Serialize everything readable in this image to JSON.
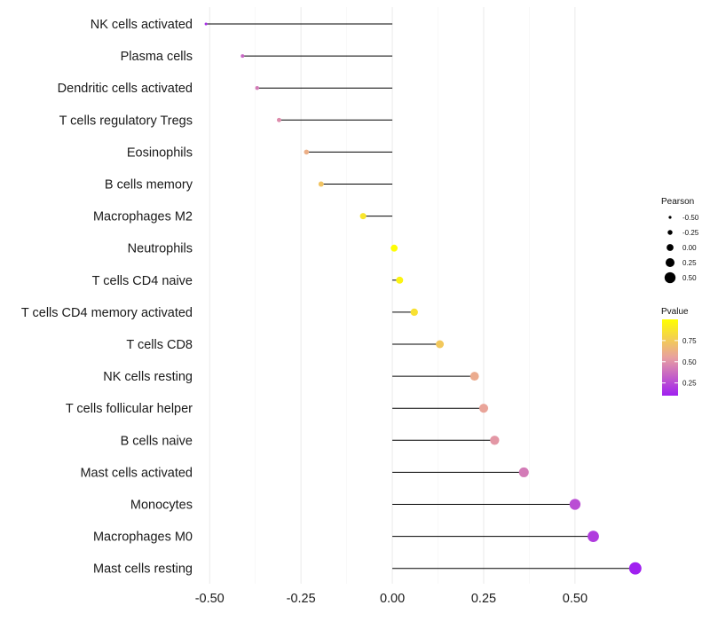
{
  "chart_data": {
    "type": "lollipop",
    "title": "",
    "xlabel": "",
    "ylabel": "",
    "xlim": [
      -0.52,
      0.68
    ],
    "x_ticks": [
      -0.5,
      -0.25,
      0.0,
      0.25,
      0.5
    ],
    "x_tick_labels": [
      "-0.50",
      "-0.25",
      "0.00",
      "0.25",
      "0.50"
    ],
    "grid": true,
    "categories": [
      "NK cells activated",
      "Plasma cells",
      "Dendritic cells activated",
      "T cells regulatory  Tregs",
      "Eosinophils",
      "B cells memory",
      "Macrophages M2",
      "Neutrophils",
      "T cells CD4 naive",
      "T cells CD4 memory activated",
      "T cells CD8",
      "NK cells resting",
      "T cells follicular helper",
      "B cells naive",
      "Mast cells activated",
      "Monocytes",
      "Macrophages M0",
      "Mast cells resting"
    ],
    "pearson": [
      -0.51,
      -0.41,
      -0.37,
      -0.31,
      -0.235,
      -0.195,
      -0.08,
      0.005,
      0.02,
      0.06,
      0.13,
      0.225,
      0.25,
      0.28,
      0.36,
      0.5,
      0.55,
      0.665
    ],
    "pvalue": [
      0.15,
      0.35,
      0.42,
      0.48,
      0.62,
      0.72,
      0.88,
      0.99,
      0.95,
      0.86,
      0.74,
      0.6,
      0.57,
      0.52,
      0.42,
      0.26,
      0.2,
      0.1
    ],
    "legend": {
      "size_title": "Pearson",
      "size_values": [
        -0.5,
        -0.25,
        0.0,
        0.25,
        0.5
      ],
      "size_labels": [
        "-0.50",
        "-0.25",
        "0.00",
        "0.25",
        "0.50"
      ],
      "color_title": "Pvalue",
      "color_ticks": [
        0.25,
        0.5,
        0.75
      ],
      "color_tick_labels": [
        "0.25",
        "0.50",
        "0.75"
      ],
      "color_range": [
        0.1,
        1.0
      ],
      "color_low": "#A020F0",
      "color_mid": "#E8A0A0",
      "color_high": "#FFFF00",
      "placement": "right"
    }
  }
}
